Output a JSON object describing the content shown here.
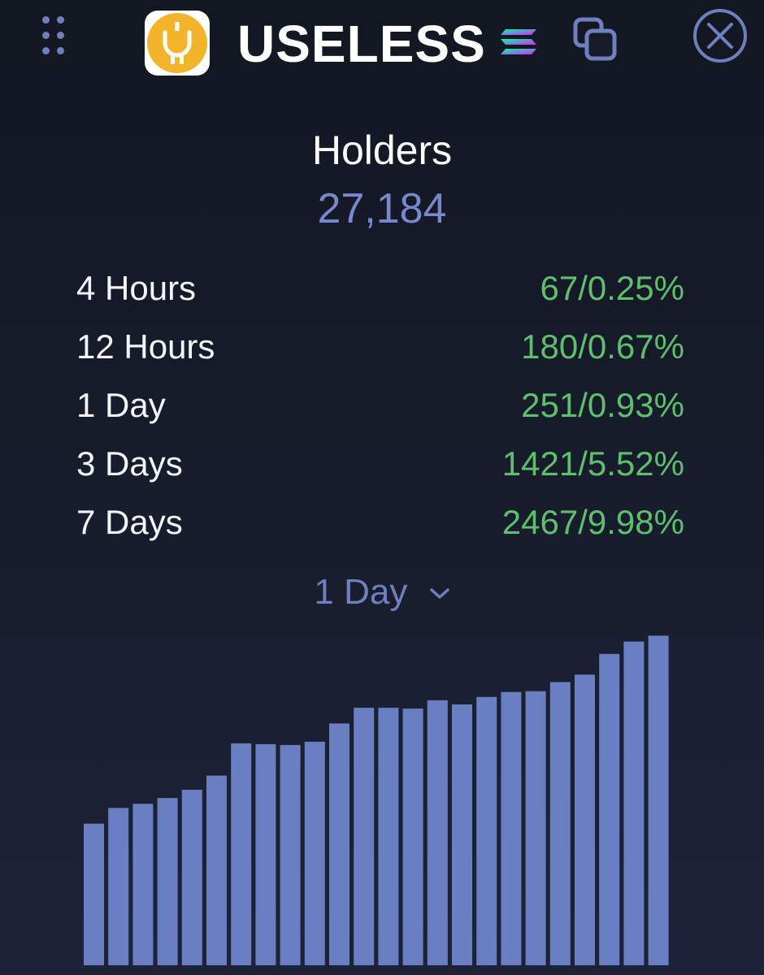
{
  "header": {
    "token_name": "USELESS",
    "icons": {
      "drag": "drag-handle-icon",
      "logo": "useless-token-logo",
      "chain": "solana-chain-icon",
      "copy": "copy-icon",
      "close": "close-icon"
    }
  },
  "holders": {
    "label": "Holders",
    "count": "27,184"
  },
  "stats": [
    {
      "period": "4 Hours",
      "value": "67/0.25%"
    },
    {
      "period": "12 Hours",
      "value": "180/0.67%"
    },
    {
      "period": "1 Day",
      "value": "251/0.93%"
    },
    {
      "period": "3 Days",
      "value": "1421/5.52%"
    },
    {
      "period": "7 Days",
      "value": "2467/9.98%"
    }
  ],
  "range_selector": {
    "selected": "1 Day"
  },
  "colors": {
    "background": "#161a26",
    "accent": "#6f7fc0",
    "positive": "#5fbf6c",
    "bar": "#6a7fc1",
    "logo": "#f2b52a"
  },
  "chart_data": {
    "type": "bar",
    "x": [
      1,
      2,
      3,
      4,
      5,
      6,
      7,
      8,
      9,
      10,
      11,
      12,
      13,
      14,
      15,
      16,
      17,
      18,
      19,
      20,
      21,
      22,
      23,
      24
    ],
    "values": [
      171,
      190,
      195,
      202,
      212,
      229,
      268,
      267,
      266,
      270,
      292,
      311,
      311,
      310,
      320,
      315,
      324,
      330,
      331,
      342,
      351,
      376,
      391,
      398
    ],
    "title": "",
    "xlabel": "",
    "ylabel": "",
    "ylim": [
      0,
      420
    ],
    "grid": false,
    "legend": "none"
  }
}
